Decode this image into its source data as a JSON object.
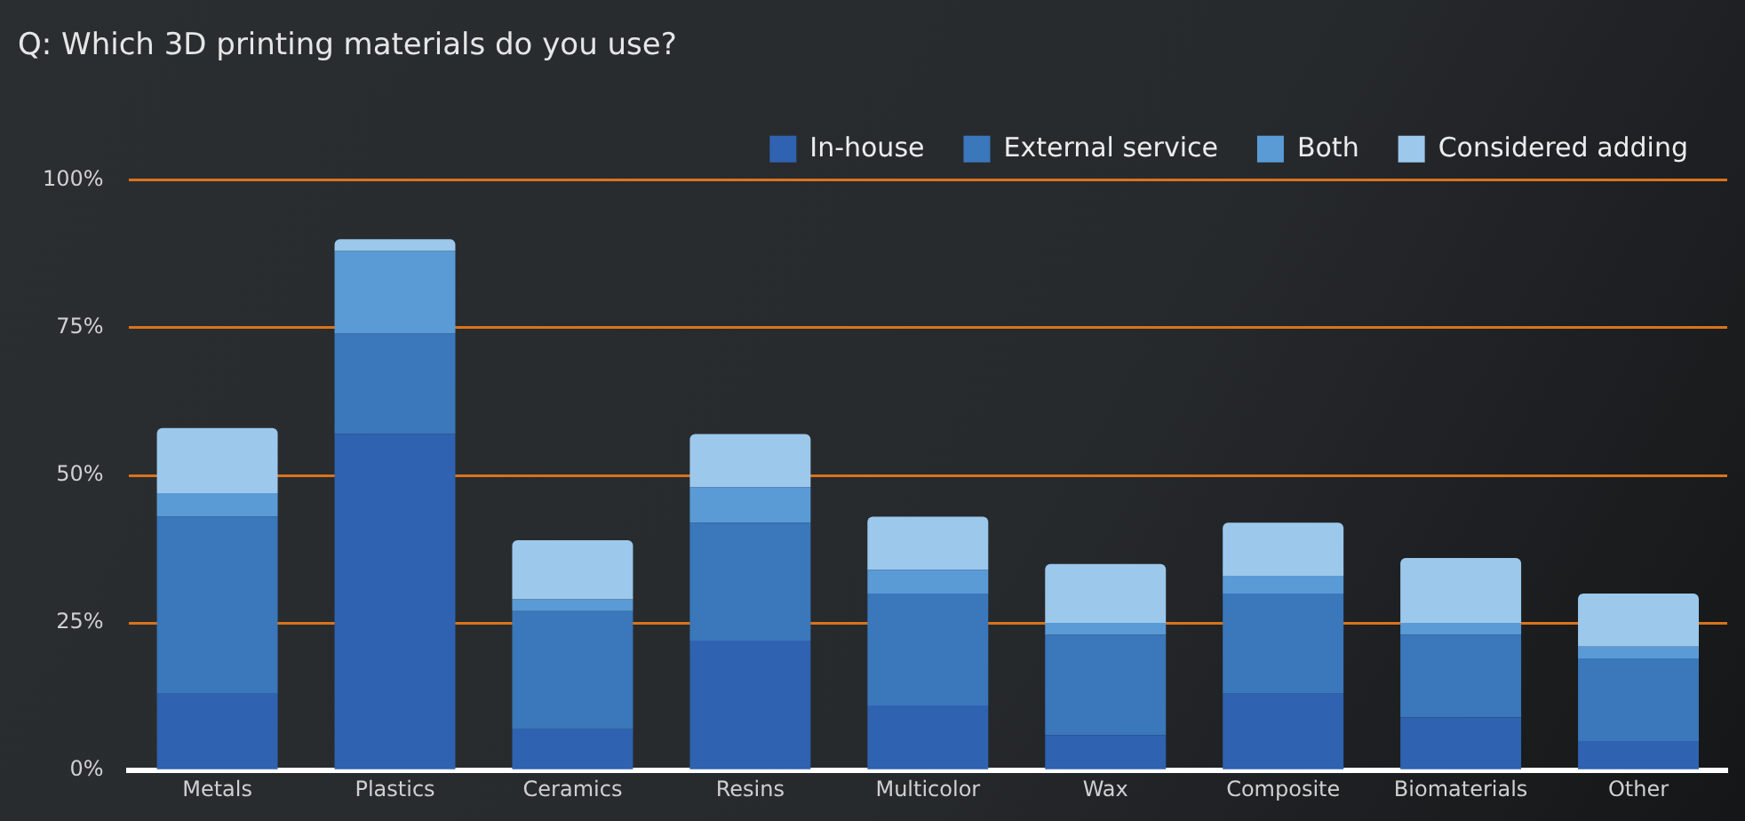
{
  "chart_data": {
    "type": "bar",
    "title": "Q: Which 3D printing materials do you use?",
    "stacked": true,
    "categories": [
      "Metals",
      "Plastics",
      "Ceramics",
      "Resins",
      "Multicolor",
      "Wax",
      "Composite",
      "Biomaterials",
      "Other"
    ],
    "series": [
      {
        "name": "In-house",
        "color": "#2f62b0",
        "values": [
          13,
          57,
          7,
          22,
          11,
          6,
          13,
          9,
          5
        ]
      },
      {
        "name": "External service",
        "color": "#3a77bb",
        "values": [
          30,
          17,
          20,
          20,
          19,
          17,
          17,
          14,
          14
        ]
      },
      {
        "name": "Both",
        "color": "#5a9bd6",
        "values": [
          4,
          14,
          2,
          6,
          4,
          2,
          3,
          2,
          2
        ]
      },
      {
        "name": "Considered adding",
        "color": "#9cc8ec",
        "values": [
          11,
          2,
          10,
          9,
          9,
          10,
          9,
          11,
          9
        ]
      }
    ],
    "ylim": [
      0,
      100
    ],
    "yticks": [
      {
        "value": 0,
        "label": "0%"
      },
      {
        "value": 25,
        "label": "25%"
      },
      {
        "value": 50,
        "label": "50%"
      },
      {
        "value": 75,
        "label": "75%"
      },
      {
        "value": 100,
        "label": "100%"
      }
    ],
    "grid": "y",
    "legend": "top right"
  }
}
